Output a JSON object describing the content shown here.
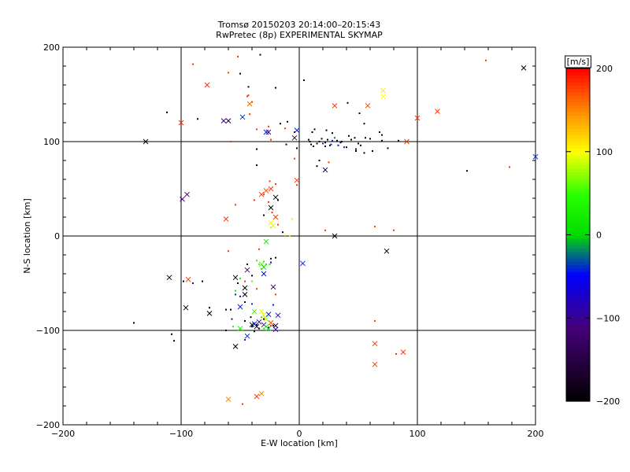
{
  "chart_data": {
    "type": "scatter",
    "title": "Tromsø 20150203 20:14:00–20:15:43",
    "subtitle": "RwPretec (8p) EXPERIMENTAL SKYMAP",
    "xlabel": "E-W location [km]",
    "ylabel": "N-S location [km]",
    "xlim": [
      -200,
      200
    ],
    "ylim": [
      -200,
      200
    ],
    "x_ticks": [
      -200,
      -100,
      0,
      100,
      200
    ],
    "y_ticks": [
      -200,
      -100,
      0,
      100,
      200
    ],
    "grid_lines": [
      -100,
      0,
      100
    ],
    "colorbar": {
      "label": "[m/s]",
      "range": [
        -200,
        200
      ],
      "ticks": [
        200,
        100,
        0,
        -100,
        -200
      ]
    },
    "markers": [
      "x",
      "dot"
    ],
    "points": [
      [
        -130,
        100,
        -200,
        "x"
      ],
      [
        -100,
        120,
        180,
        "x"
      ],
      [
        -78,
        160,
        180,
        "x"
      ],
      [
        -64,
        122,
        -100,
        "x"
      ],
      [
        -60,
        122,
        -150,
        "x"
      ],
      [
        -48,
        126,
        -40,
        "x"
      ],
      [
        -42,
        140,
        160,
        "x"
      ],
      [
        -28,
        110,
        -40,
        "x"
      ],
      [
        -26,
        110,
        -130,
        "x"
      ],
      [
        -4,
        104,
        -150,
        "x"
      ],
      [
        -2,
        112,
        -40,
        "x"
      ],
      [
        30,
        138,
        180,
        "x"
      ],
      [
        58,
        138,
        170,
        "x"
      ],
      [
        71,
        154,
        110,
        "x"
      ],
      [
        71,
        148,
        100,
        "x"
      ],
      [
        117,
        132,
        180,
        "x"
      ],
      [
        100,
        125,
        180,
        "x"
      ],
      [
        91,
        100,
        180,
        "x"
      ],
      [
        190,
        178,
        -200,
        "x"
      ],
      [
        200,
        84,
        -40,
        "x"
      ],
      [
        22,
        70,
        -150,
        "x"
      ],
      [
        -95,
        44,
        -130,
        "x"
      ],
      [
        -99,
        39,
        -120,
        "x"
      ],
      [
        -28,
        48,
        170,
        "x"
      ],
      [
        -24,
        50,
        180,
        "x"
      ],
      [
        -32,
        44,
        180,
        "x"
      ],
      [
        -20,
        41,
        -200,
        "x"
      ],
      [
        -24,
        30,
        -200,
        "x"
      ],
      [
        -62,
        18,
        180,
        "x"
      ],
      [
        -20,
        20,
        180,
        "x"
      ],
      [
        -24,
        14,
        110,
        "x"
      ],
      [
        -22,
        11,
        90,
        "x"
      ],
      [
        -2,
        59,
        180,
        "x"
      ],
      [
        -28,
        -6,
        20,
        "x"
      ],
      [
        30,
        0,
        -200,
        "x"
      ],
      [
        74,
        -16,
        -200,
        "x"
      ],
      [
        3,
        -29,
        -40,
        "x"
      ],
      [
        -110,
        -44,
        -200,
        "x"
      ],
      [
        -94,
        -46,
        180,
        "x"
      ],
      [
        -54,
        -44,
        -200,
        "x"
      ],
      [
        -44,
        -36,
        -120,
        "x"
      ],
      [
        -32,
        -30,
        60,
        "x"
      ],
      [
        -30,
        -33,
        10,
        "x"
      ],
      [
        -30,
        -40,
        -60,
        "x"
      ],
      [
        -22,
        -54,
        -140,
        "x"
      ],
      [
        -46,
        -55,
        -200,
        "x"
      ],
      [
        -46,
        -62,
        -200,
        "x"
      ],
      [
        -96,
        -76,
        -200,
        "x"
      ],
      [
        -76,
        -82,
        -200,
        "x"
      ],
      [
        -38,
        -80,
        60,
        "x"
      ],
      [
        -50,
        -75,
        -40,
        "x"
      ],
      [
        -32,
        -80,
        90,
        "x"
      ],
      [
        -30,
        -84,
        110,
        "x"
      ],
      [
        -28,
        -88,
        80,
        "x"
      ],
      [
        -26,
        -83,
        -40,
        "x"
      ],
      [
        -18,
        -84,
        -80,
        "x"
      ],
      [
        -40,
        -94,
        -200,
        "x"
      ],
      [
        -36,
        -96,
        -200,
        "x"
      ],
      [
        -34,
        -91,
        -100,
        "x"
      ],
      [
        -30,
        -94,
        -110,
        "x"
      ],
      [
        -28,
        -96,
        40,
        "x"
      ],
      [
        -24,
        -92,
        170,
        "x"
      ],
      [
        -20,
        -95,
        -150,
        "x"
      ],
      [
        -44,
        -106,
        -40,
        "x"
      ],
      [
        -50,
        -98,
        30,
        "x"
      ],
      [
        -54,
        -117,
        -200,
        "x"
      ],
      [
        -60,
        -173,
        150,
        "x"
      ],
      [
        -36,
        -170,
        180,
        "x"
      ],
      [
        -32,
        -167,
        150,
        "x"
      ],
      [
        64,
        -114,
        180,
        "x"
      ],
      [
        88,
        -123,
        180,
        "x"
      ],
      [
        64,
        -136,
        180,
        "x"
      ],
      [
        -20,
        -99,
        -80,
        "x"
      ],
      [
        -26,
        -98,
        20,
        "x"
      ],
      [
        -38,
        -93,
        -40,
        "x"
      ],
      [
        -90,
        182,
        180,
        "dot"
      ],
      [
        -60,
        173,
        180,
        "dot"
      ],
      [
        -52,
        190,
        180,
        "dot"
      ],
      [
        -33,
        192,
        -200,
        "dot"
      ],
      [
        -50,
        172,
        -200,
        "dot"
      ],
      [
        -43,
        158,
        -200,
        "dot"
      ],
      [
        -20,
        157,
        -200,
        "dot"
      ],
      [
        -112,
        131,
        -200,
        "dot"
      ],
      [
        -86,
        124,
        -200,
        "dot"
      ],
      [
        -44,
        148,
        180,
        "dot"
      ],
      [
        -43,
        149,
        180,
        "dot"
      ],
      [
        -40,
        142,
        180,
        "dot"
      ],
      [
        -42,
        129,
        180,
        "dot"
      ],
      [
        -36,
        113,
        180,
        "dot"
      ],
      [
        -16,
        119,
        -200,
        "dot"
      ],
      [
        -10,
        121,
        -200,
        "dot"
      ],
      [
        -26,
        116,
        180,
        "dot"
      ],
      [
        -12,
        114,
        180,
        "dot"
      ],
      [
        -4,
        110,
        -120,
        "dot"
      ],
      [
        4,
        165,
        -200,
        "dot"
      ],
      [
        41,
        141,
        -200,
        "dot"
      ],
      [
        51,
        130,
        -200,
        "dot"
      ],
      [
        55,
        119,
        -200,
        "dot"
      ],
      [
        68,
        110,
        -200,
        "dot"
      ],
      [
        70,
        101,
        -200,
        "dot"
      ],
      [
        60,
        103,
        -200,
        "dot"
      ],
      [
        56,
        104,
        -200,
        "dot"
      ],
      [
        47,
        104,
        -200,
        "dot"
      ],
      [
        42,
        106,
        -200,
        "dot"
      ],
      [
        48,
        92,
        -200,
        "dot"
      ],
      [
        52,
        96,
        -200,
        "dot"
      ],
      [
        50,
        98,
        -200,
        "dot"
      ],
      [
        40,
        94,
        -200,
        "dot"
      ],
      [
        36,
        100,
        -200,
        "dot"
      ],
      [
        35,
        99,
        -200,
        "dot"
      ],
      [
        32,
        101,
        -200,
        "dot"
      ],
      [
        30,
        104,
        -20,
        "dot"
      ],
      [
        28,
        101,
        -40,
        "dot"
      ],
      [
        24,
        102,
        -200,
        "dot"
      ],
      [
        22,
        99,
        -200,
        "dot"
      ],
      [
        19,
        103,
        -200,
        "dot"
      ],
      [
        17,
        100,
        -200,
        "dot"
      ],
      [
        15,
        98,
        -200,
        "dot"
      ],
      [
        12,
        95,
        -200,
        "dot"
      ],
      [
        10,
        97,
        -200,
        "dot"
      ],
      [
        9,
        100,
        -200,
        "dot"
      ],
      [
        8,
        102,
        -200,
        "dot"
      ],
      [
        11,
        110,
        -200,
        "dot"
      ],
      [
        13,
        113,
        -200,
        "dot"
      ],
      [
        22,
        95,
        -200,
        "dot"
      ],
      [
        27,
        97,
        -40,
        "dot"
      ],
      [
        33,
        96,
        -60,
        "dot"
      ],
      [
        38,
        94,
        -40,
        "dot"
      ],
      [
        20,
        98,
        -40,
        "dot"
      ],
      [
        26,
        96,
        -200,
        "dot"
      ],
      [
        44,
        102,
        -200,
        "dot"
      ],
      [
        48,
        90,
        -200,
        "dot"
      ],
      [
        55,
        88,
        -200,
        "dot"
      ],
      [
        62,
        90,
        -200,
        "dot"
      ],
      [
        75,
        93,
        -200,
        "dot"
      ],
      [
        84,
        101,
        -200,
        "dot"
      ],
      [
        70,
        107,
        -200,
        "dot"
      ],
      [
        28,
        109,
        -200,
        "dot"
      ],
      [
        23,
        112,
        -200,
        "dot"
      ],
      [
        17,
        80,
        -200,
        "dot"
      ],
      [
        15,
        74,
        -200,
        "dot"
      ],
      [
        25,
        78,
        180,
        "dot"
      ],
      [
        -4,
        82,
        180,
        "dot"
      ],
      [
        -2,
        93,
        -200,
        "dot"
      ],
      [
        -11,
        97,
        -200,
        "dot"
      ],
      [
        -24,
        102,
        180,
        "dot"
      ],
      [
        -36,
        92,
        -200,
        "dot"
      ],
      [
        -36,
        75,
        -200,
        "dot"
      ],
      [
        -58,
        100,
        180,
        "dot"
      ],
      [
        142,
        69,
        -200,
        "dot"
      ],
      [
        158,
        186,
        180,
        "dot"
      ],
      [
        178,
        73,
        180,
        "dot"
      ],
      [
        -25,
        58,
        180,
        "dot"
      ],
      [
        -20,
        55,
        180,
        "dot"
      ],
      [
        -2,
        54,
        180,
        "dot"
      ],
      [
        -30,
        44,
        180,
        "dot"
      ],
      [
        -38,
        38,
        180,
        "dot"
      ],
      [
        -54,
        33,
        180,
        "dot"
      ],
      [
        -18,
        38,
        -200,
        "dot"
      ],
      [
        -26,
        36,
        180,
        "dot"
      ],
      [
        -23,
        25,
        180,
        "dot"
      ],
      [
        -30,
        22,
        -200,
        "dot"
      ],
      [
        -6,
        18,
        110,
        "dot"
      ],
      [
        -18,
        12,
        180,
        "dot"
      ],
      [
        -24,
        9,
        120,
        "dot"
      ],
      [
        -14,
        4,
        -200,
        "dot"
      ],
      [
        -8,
        0,
        120,
        "dot"
      ],
      [
        -12,
        1,
        100,
        "dot"
      ],
      [
        64,
        10,
        180,
        "dot"
      ],
      [
        80,
        6,
        180,
        "dot"
      ],
      [
        22,
        6,
        180,
        "dot"
      ],
      [
        -34,
        -14,
        180,
        "dot"
      ],
      [
        -60,
        -16,
        180,
        "dot"
      ],
      [
        -36,
        -26,
        40,
        "dot"
      ],
      [
        -30,
        -27,
        40,
        "dot"
      ],
      [
        -34,
        -30,
        60,
        "dot"
      ],
      [
        -32,
        -35,
        40,
        "dot"
      ],
      [
        -28,
        -30,
        40,
        "dot"
      ],
      [
        -25,
        -30,
        20,
        "dot"
      ],
      [
        -44,
        -30,
        -200,
        "dot"
      ],
      [
        -24,
        -24,
        -200,
        "dot"
      ],
      [
        -20,
        -23,
        -200,
        "dot"
      ],
      [
        -24,
        -28,
        -60,
        "dot"
      ],
      [
        -40,
        -42,
        -200,
        "dot"
      ],
      [
        -50,
        -45,
        40,
        "dot"
      ],
      [
        -52,
        -50,
        -200,
        "dot"
      ],
      [
        -46,
        -48,
        180,
        "dot"
      ],
      [
        -40,
        -48,
        60,
        "dot"
      ],
      [
        -36,
        -56,
        180,
        "dot"
      ],
      [
        -54,
        -58,
        20,
        "dot"
      ],
      [
        -54,
        -62,
        -40,
        "dot"
      ],
      [
        -50,
        -64,
        -100,
        "dot"
      ],
      [
        -46,
        -70,
        -200,
        "dot"
      ],
      [
        -40,
        -72,
        -40,
        "dot"
      ],
      [
        -22,
        -73,
        -40,
        "dot"
      ],
      [
        -20,
        -62,
        180,
        "dot"
      ],
      [
        -90,
        -50,
        -100,
        "dot"
      ],
      [
        -98,
        -48,
        -200,
        "dot"
      ],
      [
        -82,
        -48,
        -200,
        "dot"
      ],
      [
        -58,
        -78,
        -200,
        "dot"
      ],
      [
        -62,
        -78,
        -200,
        "dot"
      ],
      [
        -76,
        -76,
        -200,
        "dot"
      ],
      [
        -57,
        -88,
        -100,
        "dot"
      ],
      [
        -46,
        -90,
        -200,
        "dot"
      ],
      [
        -41,
        -86,
        -200,
        "dot"
      ],
      [
        -32,
        -86,
        40,
        "dot"
      ],
      [
        -30,
        -88,
        -200,
        "dot"
      ],
      [
        -36,
        -94,
        -200,
        "dot"
      ],
      [
        -40,
        -96,
        -200,
        "dot"
      ],
      [
        -38,
        -101,
        -200,
        "dot"
      ],
      [
        -34,
        -98,
        -200,
        "dot"
      ],
      [
        -30,
        -98,
        40,
        "dot"
      ],
      [
        -26,
        -97,
        -40,
        "dot"
      ],
      [
        -24,
        -95,
        180,
        "dot"
      ],
      [
        -22,
        -95,
        -200,
        "dot"
      ],
      [
        -48,
        -100,
        40,
        "dot"
      ],
      [
        -56,
        -96,
        30,
        "dot"
      ],
      [
        -62,
        -100,
        -200,
        "dot"
      ],
      [
        -140,
        -92,
        -200,
        "dot"
      ],
      [
        -108,
        -104,
        -200,
        "dot"
      ],
      [
        -106,
        -111,
        -200,
        "dot"
      ],
      [
        -46,
        -110,
        -40,
        "dot"
      ],
      [
        64,
        -90,
        180,
        "dot"
      ],
      [
        82,
        -125,
        180,
        "dot"
      ],
      [
        -48,
        -178,
        180,
        "dot"
      ]
    ]
  }
}
